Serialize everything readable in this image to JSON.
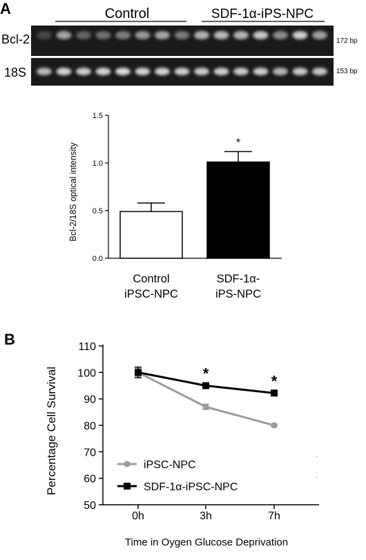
{
  "panel_a": {
    "label": "A",
    "group_control": "Control",
    "group_sdf": "SDF-1α-iPS-NPC",
    "gel_rows": [
      {
        "name": "Bcl-2",
        "size": "172 bp",
        "lanes": [
          0.15,
          0.62,
          0.3,
          0.36,
          0.42,
          0.55,
          0.62,
          0.4,
          0.68,
          0.72,
          0.7,
          0.78,
          0.5,
          0.82,
          0.6
        ]
      },
      {
        "name": "18S",
        "size": "153 bp",
        "lanes": [
          0.72,
          0.85,
          0.82,
          0.84,
          0.88,
          0.84,
          0.85,
          0.82,
          0.8,
          0.83,
          0.8,
          0.82,
          0.7,
          0.8,
          0.78
        ]
      }
    ]
  },
  "panel_b": {
    "label": "B"
  },
  "chart_data": [
    {
      "type": "bar",
      "ylabel": "Bcl-2/18S optical intensity",
      "categories": [
        "Control\niPSC-NPC",
        "SDF-1α-\niPS-NPC"
      ],
      "values": [
        0.49,
        1.01
      ],
      "errors": [
        0.09,
        0.11
      ],
      "fills": [
        "#ffffff",
        "#000000"
      ],
      "significance": [
        "",
        "*"
      ],
      "ylim": [
        0.0,
        1.5
      ],
      "yticks": [
        "0.0",
        "0.5",
        "1.0",
        "1.5"
      ],
      "grid": false
    },
    {
      "type": "line",
      "xlabel": "Time in Oygen Glucose Deprivation",
      "ylabel": "Percentage Cell Survival",
      "categories": [
        "0h",
        "3h",
        "7h"
      ],
      "series": [
        {
          "name": "iPSC-NPC",
          "values": [
            100,
            87,
            80
          ],
          "errors": [
            1.5,
            1.0,
            0.5
          ],
          "color": "#9b9b9b",
          "marker": "circle"
        },
        {
          "name": "SDF-1α-iPSC-NPC",
          "values": [
            100,
            95,
            92.2
          ],
          "errors": [
            2.0,
            1.0,
            1.0
          ],
          "color": "#000000",
          "marker": "square"
        }
      ],
      "significance": [
        "",
        "*",
        "*"
      ],
      "ylim": [
        50,
        110
      ],
      "yticks": [
        "50",
        "60",
        "70",
        "80",
        "90",
        "100",
        "110"
      ],
      "legend": "bottom-left",
      "grid": false
    }
  ]
}
